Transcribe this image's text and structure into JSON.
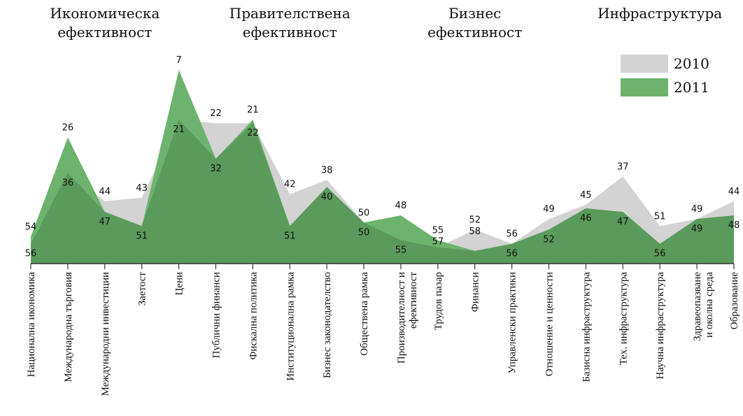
{
  "chart_data": {
    "type": "area",
    "title": "",
    "xlabel": "",
    "ylabel": "",
    "ylim": [
      0,
      60
    ],
    "y_reversed": true,
    "grid": false,
    "legend": "top-right",
    "group_titles": [
      {
        "lines": [
          "Икономическа",
          "ефективност"
        ],
        "category_range": [
          0,
          4
        ]
      },
      {
        "lines": [
          "Правителствена",
          "ефективност"
        ],
        "category_range": [
          5,
          9
        ]
      },
      {
        "lines": [
          "Бизнес",
          "ефективност"
        ],
        "category_range": [
          10,
          14
        ]
      },
      {
        "lines": [
          "Инфраструктура"
        ],
        "category_range": [
          15,
          19
        ]
      }
    ],
    "categories": [
      [
        "Национална икономика"
      ],
      [
        "Международна търговия"
      ],
      [
        "Международни инвестиции"
      ],
      [
        "Заетост"
      ],
      [
        "Цени"
      ],
      [
        "Публични финанси"
      ],
      [
        "Фискална политика"
      ],
      [
        "Институционална рамка"
      ],
      [
        "Бизнес законодателство"
      ],
      [
        "Обществена рамка"
      ],
      [
        "Производителност и",
        "ефективност"
      ],
      [
        "Трудов пазар"
      ],
      [
        "Финанси"
      ],
      [
        "Управленски практики"
      ],
      [
        "Отношение и ценности"
      ],
      [
        "Базисна инфраструктура"
      ],
      [
        "Тех. инфраструктура"
      ],
      [
        "Научна инфраструктура"
      ],
      [
        "Здравеопазване",
        "и околна среда"
      ],
      [
        "Образование"
      ]
    ],
    "series": [
      {
        "name": "2010",
        "color": "#d3d3d3",
        "values": [
          56,
          36,
          44,
          43,
          21,
          22,
          22,
          42,
          38,
          50,
          55,
          57,
          52,
          56,
          49,
          45,
          37,
          51,
          49,
          44
        ],
        "labels": [
          "56",
          "36",
          "44",
          "43",
          "21",
          "22",
          "22",
          "42",
          "38",
          "50",
          "55",
          "57",
          "52",
          "56",
          "49",
          "45",
          "37",
          "51",
          "49",
          "44"
        ]
      },
      {
        "name": "2011",
        "color": "#6db36d",
        "values": [
          54,
          26,
          47,
          51,
          7,
          32,
          21,
          51,
          40,
          50,
          48,
          55,
          58,
          56,
          52,
          46,
          47,
          56,
          49,
          48
        ],
        "labels": [
          "54",
          "26",
          "47",
          "51",
          "7",
          "32",
          "21",
          "51",
          "40",
          "50",
          "48",
          "55",
          "58",
          "56",
          "52",
          "46",
          "47",
          "56",
          "49",
          "48"
        ]
      }
    ]
  }
}
